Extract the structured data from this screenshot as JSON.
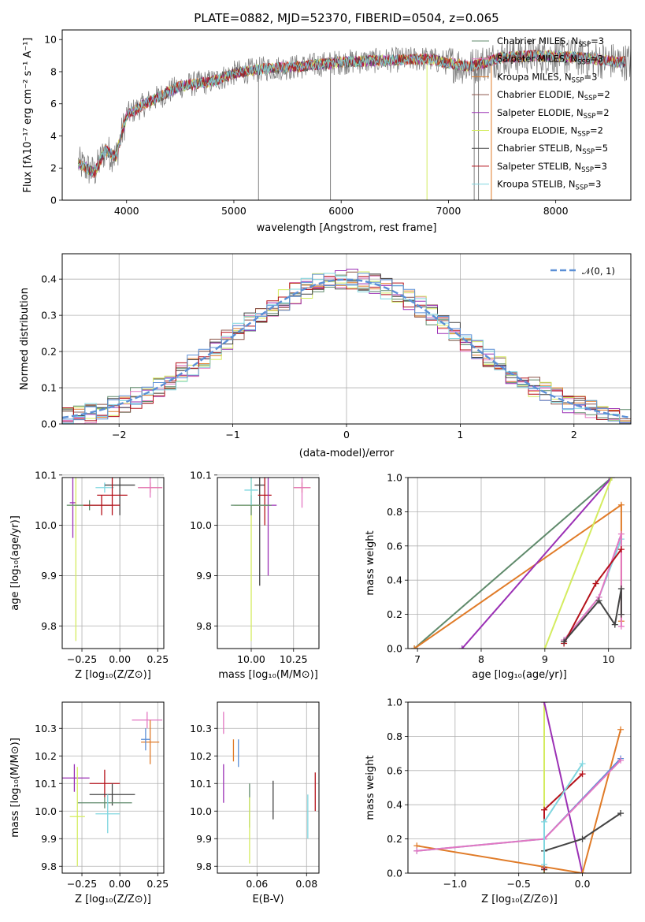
{
  "colors": {
    "Chabrier MILES": "#5f8a6b",
    "Salpeter MILES": "#e377c2",
    "Kroupa MILES": "#e07b28",
    "Chabrier ELODIE": "#8c564b",
    "Salpeter ELODIE": "#9b30b5",
    "Kroupa ELODIE": "#d4ec5f",
    "Chabrier STELIB": "#444444",
    "Salpeter STELIB": "#b5121b",
    "Kroupa STELIB": "#7fd6df",
    "data": "#808080",
    "gauss": "#5b8fd6"
  },
  "chart_data": [
    {
      "id": "spectrum",
      "type": "line",
      "title": "PLATE=0882, MJD=52370, FIBERID=0504, z=0.065",
      "xlabel": "wavelength [Angstrom, rest frame]",
      "ylabel": "Flux [fλ10⁻¹⁷ erg cm⁻² s⁻¹ A⁻¹]",
      "xlim": [
        3400,
        8700
      ],
      "ylim": [
        0,
        10.6
      ],
      "xticks": [
        4000,
        5000,
        6000,
        7000,
        8000
      ],
      "yticks": [
        0,
        2,
        4,
        6,
        8,
        10
      ],
      "legend": [
        {
          "label": "Chabrier MILES, N",
          "sub": "SSP",
          "tail": "=3",
          "color": "#5f8a6b"
        },
        {
          "label": "Salpeter MILES, N",
          "sub": "SSP",
          "tail": "=3",
          "color": "#e377c2"
        },
        {
          "label": "Kroupa MILES, N",
          "sub": "SSP",
          "tail": "=3",
          "color": "#e07b28"
        },
        {
          "label": "Chabrier ELODIE, N",
          "sub": "SSP",
          "tail": "=2",
          "color": "#8c564b"
        },
        {
          "label": "Salpeter ELODIE, N",
          "sub": "SSP",
          "tail": "=2",
          "color": "#9b30b5"
        },
        {
          "label": "Kroupa ELODIE, N",
          "sub": "SSP",
          "tail": "=2",
          "color": "#d4ec5f"
        },
        {
          "label": "Chabrier STELIB, N",
          "sub": "SSP",
          "tail": "=5",
          "color": "#444444"
        },
        {
          "label": "Salpeter STELIB, N",
          "sub": "SSP",
          "tail": "=3",
          "color": "#b5121b"
        },
        {
          "label": "Kroupa STELIB, N",
          "sub": "SSP",
          "tail": "=3",
          "color": "#7fd6df"
        }
      ],
      "continuum": [
        [
          3550,
          2.3
        ],
        [
          3700,
          1.7
        ],
        [
          3800,
          3.1
        ],
        [
          3900,
          2.7
        ],
        [
          4000,
          5.3
        ],
        [
          4200,
          6.1
        ],
        [
          4500,
          7.1
        ],
        [
          4800,
          7.4
        ],
        [
          5000,
          7.9
        ],
        [
          5300,
          8.2
        ],
        [
          5600,
          8.3
        ],
        [
          6000,
          8.6
        ],
        [
          6400,
          8.7
        ],
        [
          6800,
          8.8
        ],
        [
          7200,
          8.3
        ],
        [
          7500,
          8.9
        ],
        [
          7800,
          9.0
        ],
        [
          8200,
          8.9
        ],
        [
          8600,
          8.6
        ]
      ]
    },
    {
      "id": "residual-hist",
      "type": "histogram",
      "xlabel": "(data-model)/error",
      "ylabel": "Normed distribution",
      "xlim": [
        -2.5,
        2.5
      ],
      "ylim": [
        0,
        0.47
      ],
      "xticks": [
        -2,
        -1,
        0,
        1,
        2
      ],
      "yticks": [
        0.0,
        0.1,
        0.2,
        0.3,
        0.4
      ],
      "legend_label": "𝒩(0, 1)",
      "gaussian": {
        "mean": 0,
        "sigma": 1
      }
    },
    {
      "id": "age-vs-Z",
      "type": "errorbar",
      "xlabel": "Z [log₁₀(Z/Z⊙)]",
      "ylabel": "age  [log₁₀(age/yr)]",
      "xlim": [
        -0.38,
        0.29
      ],
      "ylim": [
        9.755,
        10.095
      ],
      "xticks": [
        -0.25,
        0.0,
        0.25
      ],
      "xticklabels": [
        "−0.25",
        "0.00",
        "0.25"
      ],
      "yticks": [
        9.8,
        9.9,
        10.0,
        10.1
      ],
      "points": [
        {
          "x": 0.2,
          "y": 10.075,
          "xerr": 0.08,
          "yerr": 0.01,
          "c": "#e07b28"
        },
        {
          "x": 0.2,
          "y": 10.075,
          "xerr": 0.08,
          "yerr": 0.02,
          "c": "#e377c2"
        },
        {
          "x": -0.1,
          "y": 10.075,
          "xerr": 0.06,
          "yerr": 0.01,
          "c": "#7fd6df"
        },
        {
          "x": 0.0,
          "y": 10.08,
          "xerr": 0.1,
          "yerr": 0.06,
          "c": "#444444"
        },
        {
          "x": -0.05,
          "y": 10.06,
          "xerr": 0.1,
          "yerr": 0.04,
          "c": "#b5121b"
        },
        {
          "x": -0.31,
          "y": 10.045,
          "xerr": 0.02,
          "yerr": 0.07,
          "c": "#9b30b5"
        },
        {
          "x": -0.29,
          "y": 10.04,
          "xerr": 0.05,
          "yerr": 0.27,
          "c": "#d4ec5f"
        },
        {
          "x": -0.2,
          "y": 10.04,
          "xerr": 0.15,
          "yerr": 0.01,
          "c": "#5f8a6b"
        },
        {
          "x": -0.12,
          "y": 10.04,
          "xerr": 0.12,
          "yerr": 0.02,
          "c": "#b5121b"
        }
      ]
    },
    {
      "id": "age-vs-mass",
      "type": "errorbar",
      "xlabel": "mass [log₁₀(M/M⊙)]",
      "ylabel": "",
      "xlim": [
        9.8,
        10.4
      ],
      "ylim": [
        9.755,
        10.095
      ],
      "xticks": [
        10.0,
        10.25
      ],
      "xticklabels": [
        "10.00",
        "10.25"
      ],
      "yticks": [
        9.8,
        9.9,
        10.0,
        10.1
      ],
      "points": [
        {
          "x": 10.3,
          "y": 10.075,
          "xerr": 0.05,
          "yerr": 0.01,
          "c": "#e07b28"
        },
        {
          "x": 10.3,
          "y": 10.075,
          "xerr": 0.05,
          "yerr": 0.04,
          "c": "#e377c2"
        },
        {
          "x": 10.05,
          "y": 10.08,
          "xerr": 0.03,
          "yerr": 0.2,
          "c": "#444444"
        },
        {
          "x": 10.08,
          "y": 10.06,
          "xerr": 0.04,
          "yerr": 0.06,
          "c": "#b5121b"
        },
        {
          "x": 10.1,
          "y": 10.04,
          "xerr": 0.05,
          "yerr": 0.14,
          "c": "#9b30b5"
        },
        {
          "x": 10.0,
          "y": 10.04,
          "xerr": 0.1,
          "yerr": 0.27,
          "c": "#d4ec5f"
        },
        {
          "x": 10.0,
          "y": 10.04,
          "xerr": 0.12,
          "yerr": 0.02,
          "c": "#5f8a6b"
        },
        {
          "x": 10.0,
          "y": 10.07,
          "xerr": 0.04,
          "yerr": 0.03,
          "c": "#7fd6df"
        }
      ]
    },
    {
      "id": "mass-weight-vs-age",
      "type": "line",
      "xlabel": "age  [log₁₀(age/yr)]",
      "ylabel": "mass weight",
      "xlim": [
        6.85,
        10.35
      ],
      "ylim": [
        0,
        1
      ],
      "xticks": [
        7,
        8,
        9,
        10
      ],
      "yticks": [
        0.0,
        0.2,
        0.4,
        0.6,
        0.8,
        1.0
      ],
      "series": [
        {
          "c": "#5f8a6b",
          "pts": [
            [
              6.95,
              0.0
            ],
            [
              10.05,
              1.0
            ]
          ]
        },
        {
          "c": "#e07b28",
          "pts": [
            [
              6.95,
              0.0
            ],
            [
              10.2,
              0.84
            ],
            [
              10.2,
              0.16
            ]
          ]
        },
        {
          "c": "#9b30b5",
          "pts": [
            [
              7.7,
              0.0
            ],
            [
              10.05,
              1.0
            ]
          ]
        },
        {
          "c": "#d4ec5f",
          "pts": [
            [
              9.0,
              0.0
            ],
            [
              10.05,
              1.0
            ]
          ]
        },
        {
          "c": "#7fd6df",
          "pts": [
            [
              9.3,
              0.05
            ],
            [
              9.85,
              0.3
            ],
            [
              10.2,
              0.64
            ]
          ]
        },
        {
          "c": "#e377c2",
          "pts": [
            [
              9.3,
              0.05
            ],
            [
              9.85,
              0.3
            ],
            [
              10.2,
              0.67
            ],
            [
              10.2,
              0.13
            ]
          ]
        },
        {
          "c": "#b5121b",
          "pts": [
            [
              9.3,
              0.03
            ],
            [
              9.8,
              0.38
            ],
            [
              10.2,
              0.58
            ]
          ]
        },
        {
          "c": "#444444",
          "pts": [
            [
              9.3,
              0.04
            ],
            [
              9.85,
              0.28
            ],
            [
              10.1,
              0.14
            ],
            [
              10.2,
              0.35
            ],
            [
              10.2,
              0.2
            ]
          ]
        }
      ]
    },
    {
      "id": "mass-vs-Z",
      "type": "errorbar",
      "xlabel": "Z [log₁₀(Z/Z⊙)]",
      "ylabel": "mass [log₁₀(M/M⊙)]",
      "xlim": [
        -0.38,
        0.29
      ],
      "ylim": [
        9.775,
        10.395
      ],
      "xticks": [
        -0.25,
        0.0,
        0.25
      ],
      "xticklabels": [
        "−0.25",
        "0.00",
        "0.25"
      ],
      "yticks": [
        9.8,
        9.9,
        10.0,
        10.1,
        10.2,
        10.3
      ],
      "points": [
        {
          "x": 0.18,
          "y": 10.33,
          "xerr": 0.1,
          "yerr": 0.03,
          "c": "#e377c2"
        },
        {
          "x": 0.2,
          "y": 10.25,
          "xerr": 0.06,
          "yerr": 0.08,
          "c": "#e07b28"
        },
        {
          "x": 0.17,
          "y": 10.26,
          "xerr": 0.03,
          "yerr": 0.04,
          "c": "#5b8fd6"
        },
        {
          "x": -0.3,
          "y": 10.12,
          "xerr": 0.1,
          "yerr": 0.05,
          "c": "#9b30b5"
        },
        {
          "x": -0.1,
          "y": 10.1,
          "xerr": 0.1,
          "yerr": 0.05,
          "c": "#b5121b"
        },
        {
          "x": -0.05,
          "y": 10.06,
          "xerr": 0.15,
          "yerr": 0.04,
          "c": "#444444"
        },
        {
          "x": -0.1,
          "y": 10.03,
          "xerr": 0.18,
          "yerr": 0.02,
          "c": "#5f8a6b"
        },
        {
          "x": -0.08,
          "y": 9.99,
          "xerr": 0.08,
          "yerr": 0.07,
          "c": "#7fd6df"
        },
        {
          "x": -0.28,
          "y": 9.98,
          "xerr": 0.05,
          "yerr": 0.18,
          "c": "#d4ec5f"
        }
      ]
    },
    {
      "id": "mass-vs-EBV",
      "type": "errorbar",
      "xlabel": "E(B-V)",
      "ylabel": "",
      "xlim": [
        0.044,
        0.085
      ],
      "ylim": [
        9.775,
        10.395
      ],
      "xticks": [
        0.06,
        0.08
      ],
      "xticklabels": [
        "0.06",
        "0.08"
      ],
      "yticks": [
        9.8,
        9.9,
        10.0,
        10.1,
        10.2,
        10.3
      ],
      "points": [
        {
          "x": 0.0465,
          "y": 10.32,
          "xerr": 0,
          "yerr": 0.04,
          "c": "#e377c2"
        },
        {
          "x": 0.0505,
          "y": 10.22,
          "xerr": 0,
          "yerr": 0.04,
          "c": "#e07b28"
        },
        {
          "x": 0.0525,
          "y": 10.21,
          "xerr": 0,
          "yerr": 0.05,
          "c": "#5b8fd6"
        },
        {
          "x": 0.0465,
          "y": 10.1,
          "xerr": 0,
          "yerr": 0.07,
          "c": "#9b30b5"
        },
        {
          "x": 0.057,
          "y": 10.02,
          "xerr": 0,
          "yerr": 0.08,
          "c": "#5f8a6b"
        },
        {
          "x": 0.057,
          "y": 9.93,
          "xerr": 0,
          "yerr": 0.12,
          "c": "#d4ec5f"
        },
        {
          "x": 0.0665,
          "y": 10.04,
          "xerr": 0,
          "yerr": 0.07,
          "c": "#444444"
        },
        {
          "x": 0.0805,
          "y": 9.98,
          "xerr": 0,
          "yerr": 0.08,
          "c": "#7fd6df"
        },
        {
          "x": 0.0835,
          "y": 10.07,
          "xerr": 0,
          "yerr": 0.07,
          "c": "#b5121b"
        }
      ]
    },
    {
      "id": "mass-weight-vs-Z",
      "type": "line",
      "xlabel": "Z [log₁₀(Z/Z⊙)]",
      "ylabel": "mass weight",
      "xlim": [
        -1.37,
        0.38
      ],
      "ylim": [
        0,
        1
      ],
      "xticks": [
        -1.0,
        -0.5,
        0.0
      ],
      "xticklabels": [
        "−1.0",
        "−0.5",
        "0.0"
      ],
      "yticks": [
        0.0,
        0.2,
        0.4,
        0.6,
        0.8,
        1.0
      ],
      "series": [
        {
          "c": "#d4ec5f",
          "pts": [
            [
              -0.3,
              1.0
            ],
            [
              -0.3,
              0.0
            ]
          ]
        },
        {
          "c": "#9b30b5",
          "pts": [
            [
              -0.3,
              1.0
            ],
            [
              0.0,
              0.0
            ]
          ]
        },
        {
          "c": "#e07b28",
          "pts": [
            [
              -1.3,
              0.16
            ],
            [
              0.0,
              0.0
            ],
            [
              0.3,
              0.84
            ]
          ]
        },
        {
          "c": "#5b8fd6",
          "pts": [
            [
              -1.3,
              0.13
            ],
            [
              -0.3,
              0.2
            ],
            [
              0.3,
              0.67
            ]
          ]
        },
        {
          "c": "#e377c2",
          "pts": [
            [
              -1.3,
              0.13
            ],
            [
              -0.3,
              0.2
            ],
            [
              0.3,
              0.66
            ]
          ]
        },
        {
          "c": "#444444",
          "pts": [
            [
              -0.3,
              0.02
            ],
            [
              -0.3,
              0.13
            ],
            [
              0.0,
              0.2
            ],
            [
              0.3,
              0.35
            ]
          ]
        },
        {
          "c": "#b5121b",
          "pts": [
            [
              -0.3,
              0.03
            ],
            [
              -0.3,
              0.37
            ],
            [
              0.0,
              0.58
            ]
          ]
        },
        {
          "c": "#7fd6df",
          "pts": [
            [
              -0.3,
              0.05
            ],
            [
              -0.3,
              0.3
            ],
            [
              0.0,
              0.64
            ]
          ]
        }
      ]
    }
  ]
}
